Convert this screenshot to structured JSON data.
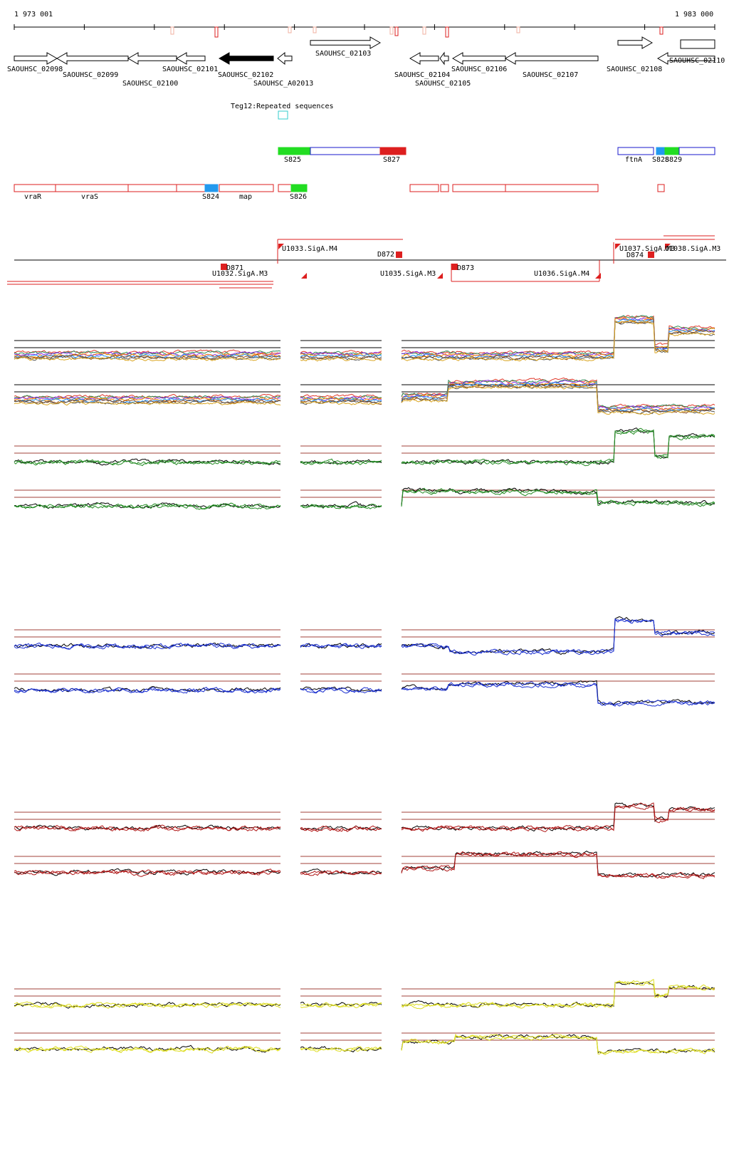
{
  "coords": {
    "start": "1 973 001",
    "end": "1 983 000"
  },
  "genes": [
    {
      "label": "SAOUHSC_02098"
    },
    {
      "label": "SAOUHSC_02099"
    },
    {
      "label": "SAOUHSC_02100"
    },
    {
      "label": "SAOUHSC_02101"
    },
    {
      "label": "SAOUHSC_02102"
    },
    {
      "label": "SAOUHSC_A02013"
    },
    {
      "label": "SAOUHSC_02103"
    },
    {
      "label": "SAOUHSC_02104"
    },
    {
      "label": "SAOUHSC_02105"
    },
    {
      "label": "SAOUHSC_02106"
    },
    {
      "label": "SAOUHSC_02107"
    },
    {
      "label": "SAOUHSC_02108"
    },
    {
      "label": "SAOUHSC_02110"
    }
  ],
  "repeat": {
    "label": "Teg12:Repeated sequences"
  },
  "segments_top": [
    {
      "label": "S825"
    },
    {
      "label": "S827"
    },
    {
      "label": "ftnA"
    },
    {
      "label": "S828"
    },
    {
      "label": "S829"
    }
  ],
  "segments_bottom": [
    {
      "label": "vraR"
    },
    {
      "label": "vraS"
    },
    {
      "label": "S824"
    },
    {
      "label": "map"
    },
    {
      "label": "S826"
    }
  ],
  "promoters": [
    {
      "label": "U1033.SigA.M4"
    },
    {
      "label": "D872"
    },
    {
      "label": "D871"
    },
    {
      "label": "U1032.SigA.M3"
    },
    {
      "label": "U1035.SigA.M3"
    },
    {
      "label": "D873"
    },
    {
      "label": "U1036.SigA.M4"
    },
    {
      "label": "U1037.SigA.M3"
    },
    {
      "label": "D874"
    },
    {
      "label": "U1038.SigA.M3"
    }
  ],
  "colors": {
    "gene_fill": "#ffffff",
    "gene_selected": "#000000",
    "seg_blue": "#1a1acc",
    "seg_red": "#dd1f1f",
    "seg_green": "#22dd22",
    "seg_lightblue": "#2299ee",
    "repeat": "#33cccc",
    "track_green": "#228b22",
    "track_blue": "#1a2fcf",
    "track_red": "#b01818",
    "track_yellow": "#dddd22",
    "threshold": "#a0403a"
  }
}
